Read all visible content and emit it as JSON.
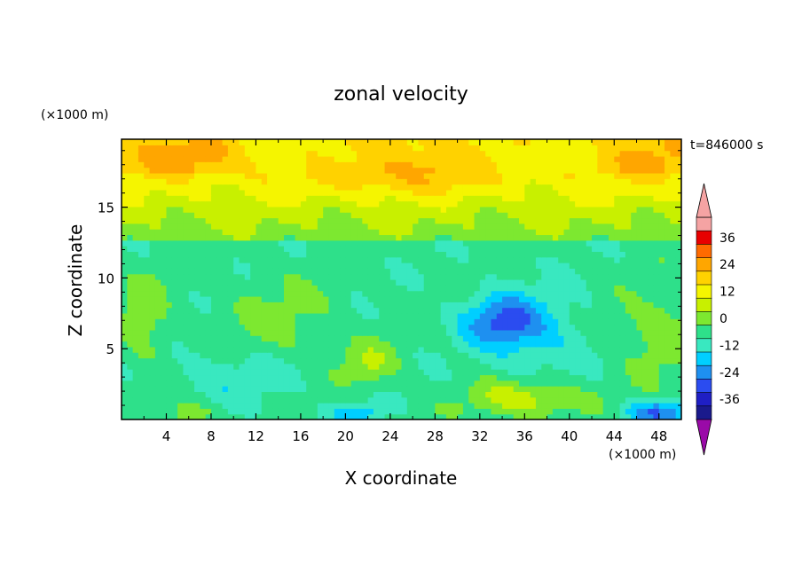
{
  "chart_data": {
    "type": "heatmap",
    "title": "zonal velocity",
    "xlabel": "X coordinate",
    "ylabel": "Z coordinate",
    "x_unit": "(×1000 m)",
    "y_unit": "(×1000 m)",
    "time_label": "t=846000 s",
    "xlim": [
      0,
      50
    ],
    "ylim": [
      0,
      19.8
    ],
    "xticks": [
      4,
      8,
      12,
      16,
      20,
      24,
      28,
      32,
      36,
      40,
      44,
      48
    ],
    "yticks": [
      5,
      10,
      15
    ],
    "colorbar": {
      "ticks": [
        36,
        24,
        12,
        0,
        -12,
        -24,
        -36
      ],
      "levels": [
        -42,
        -36,
        -30,
        -24,
        -18,
        -12,
        -6,
        0,
        6,
        12,
        18,
        24,
        30,
        36,
        42
      ],
      "colors": [
        "#5a0a9c",
        "#1a1a8c",
        "#1f1fc4",
        "#2b4cf0",
        "#1e90f0",
        "#00cfff",
        "#39e8c0",
        "#2ee08a",
        "#7de830",
        "#c8f000",
        "#f5f500",
        "#ffd200",
        "#ffa600",
        "#ff6a00",
        "#e80000",
        "#f5a3a3",
        "#9a0aa8"
      ],
      "over_color": "#f5a3a3",
      "under_color": "#9a0aa8"
    },
    "grid": false,
    "field_description": "contour-filled zonal velocity field; strong positive (orange) jet near z≈16–19, weak negative (cyan/blue) in mid levels 5–13, blue core near x≈30–38, z≈5–9"
  }
}
